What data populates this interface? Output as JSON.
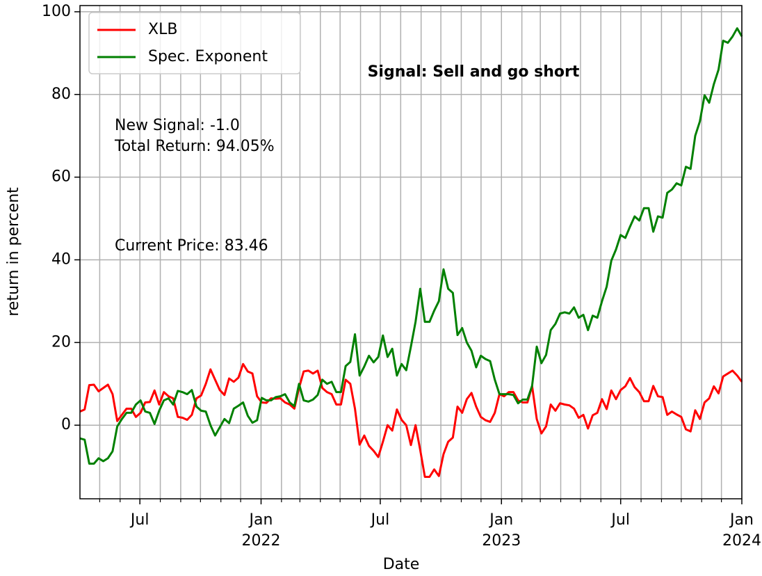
{
  "chart_data": {
    "type": "line",
    "xlabel": "Date",
    "ylabel": "return in percent",
    "annotations": [
      "Signal: Sell and go short",
      "New Signal: -1.0",
      "Total Return: 94.05%",
      "Current Price: 83.46"
    ],
    "annotation_colors": [
      "#ff0000",
      "#000000",
      "#000000",
      "#000000"
    ],
    "xlim": [
      "2021-04",
      "2024-01"
    ],
    "xticks": [
      {
        "value": "2021-07",
        "label": "Jul"
      },
      {
        "value": "2022-01",
        "label": "Jan\n2022"
      },
      {
        "value": "2022-07",
        "label": "Jul"
      },
      {
        "value": "2023-01",
        "label": "Jan\n2023"
      },
      {
        "value": "2023-07",
        "label": "Jul"
      },
      {
        "value": "2024-01",
        "label": "Jan\n2024"
      }
    ],
    "xminorticks": [
      "2021-05",
      "2021-06",
      "2021-08",
      "2021-09",
      "2021-10",
      "2021-11",
      "2021-12",
      "2022-02",
      "2022-03",
      "2022-04",
      "2022-05",
      "2022-06",
      "2022-08",
      "2022-09",
      "2022-10",
      "2022-11",
      "2022-12",
      "2023-02",
      "2023-03",
      "2023-04",
      "2023-05",
      "2023-06",
      "2023-08",
      "2023-09",
      "2023-10",
      "2023-11",
      "2023-12"
    ],
    "ylim": [
      -17.8,
      101.5
    ],
    "yticks": [
      0,
      20,
      40,
      60,
      80,
      100
    ],
    "grid": true,
    "legend": "upper left",
    "series": [
      {
        "name": "XLB",
        "color": "#ff0000",
        "values": [
          3.3,
          3.8,
          9.7,
          9.8,
          8.2,
          9,
          9.8,
          7.5,
          1,
          2.5,
          4,
          4,
          2,
          3,
          5.5,
          5.6,
          8.4,
          5,
          8,
          7,
          6.5,
          2,
          1.8,
          1.3,
          2.5,
          6.5,
          7.2,
          10,
          13.5,
          11,
          8.5,
          7.3,
          11.3,
          10.5,
          11.5,
          14.8,
          13,
          12.5,
          7,
          5.5,
          5.4,
          6.5,
          6.4,
          6.5,
          5.5,
          5,
          4,
          9,
          13,
          13.2,
          12.5,
          13.2,
          9,
          8,
          7.5,
          5,
          5,
          11,
          10,
          4,
          -4.7,
          -2.5,
          -5,
          -6.2,
          -7.7,
          -4,
          0,
          -1.3,
          3.8,
          1.3,
          0,
          -4.8,
          0,
          -6,
          -12.5,
          -12.5,
          -10.7,
          -12.3,
          -7,
          -4,
          -3,
          4.5,
          3,
          6.3,
          7.8,
          4.5,
          2,
          1.2,
          0.8,
          3,
          7.5,
          7,
          8,
          8,
          6,
          5.5,
          5.5,
          9.5,
          1.5,
          -2,
          -0.3,
          5,
          3.5,
          5.3,
          5,
          4.8,
          4,
          1.8,
          2.5,
          -0.8,
          2.4,
          3,
          6.3,
          3.9,
          8.4,
          6.3,
          8.5,
          9.4,
          11.4,
          9.2,
          8,
          5.8,
          5.8,
          9.5,
          7,
          6.8,
          2.5,
          3.3,
          2.6,
          2,
          -1,
          -1.5,
          3.6,
          1.5,
          5.5,
          6.5,
          9.4,
          7.7,
          11.8,
          12.5,
          13.2,
          12,
          10.5
        ]
      },
      {
        "name": "Spec. Exponent",
        "color": "#008000",
        "values": [
          -3.2,
          -3.5,
          -9.3,
          -9.3,
          -8,
          -8.7,
          -8,
          -6.3,
          -0.3,
          1.5,
          3,
          3,
          5,
          6,
          3.3,
          3,
          0.3,
          3.5,
          6,
          6.5,
          5,
          8.3,
          8,
          7.5,
          8.5,
          4.5,
          3.5,
          3.3,
          0,
          -2.5,
          -0.5,
          1.5,
          0.5,
          4,
          4.7,
          5.5,
          2.3,
          0.6,
          1.2,
          6.6,
          6,
          6,
          6.8,
          7,
          7.5,
          5.5,
          4.6,
          10,
          6,
          5.7,
          6.2,
          7.3,
          11,
          10,
          10.5,
          8,
          8,
          14.3,
          15.3,
          22,
          12,
          14.2,
          16.8,
          15.2,
          16.5,
          21.7,
          16.5,
          18.5,
          12,
          14.8,
          13.3,
          19,
          25,
          33,
          25,
          25,
          27.7,
          30,
          37.7,
          33,
          32,
          21.8,
          23.5,
          20,
          18,
          14,
          16.8,
          16,
          15.5,
          11,
          7.5,
          7.5,
          7.5,
          7.3,
          5.3,
          6.2,
          6.2,
          9.5,
          19,
          15,
          17,
          23,
          24.5,
          27,
          27.3,
          27,
          28.5,
          26,
          26.7,
          23,
          26.5,
          26,
          30,
          33.5,
          39.8,
          42.5,
          46,
          45.3,
          48,
          50.5,
          49.5,
          52.5,
          52.5,
          46.8,
          50.5,
          50.2,
          56.2,
          57,
          58.5,
          58,
          62.5,
          62,
          70,
          73.5,
          79.8,
          78,
          82.5,
          86,
          93,
          92.5,
          94,
          96,
          94.05
        ]
      }
    ]
  }
}
